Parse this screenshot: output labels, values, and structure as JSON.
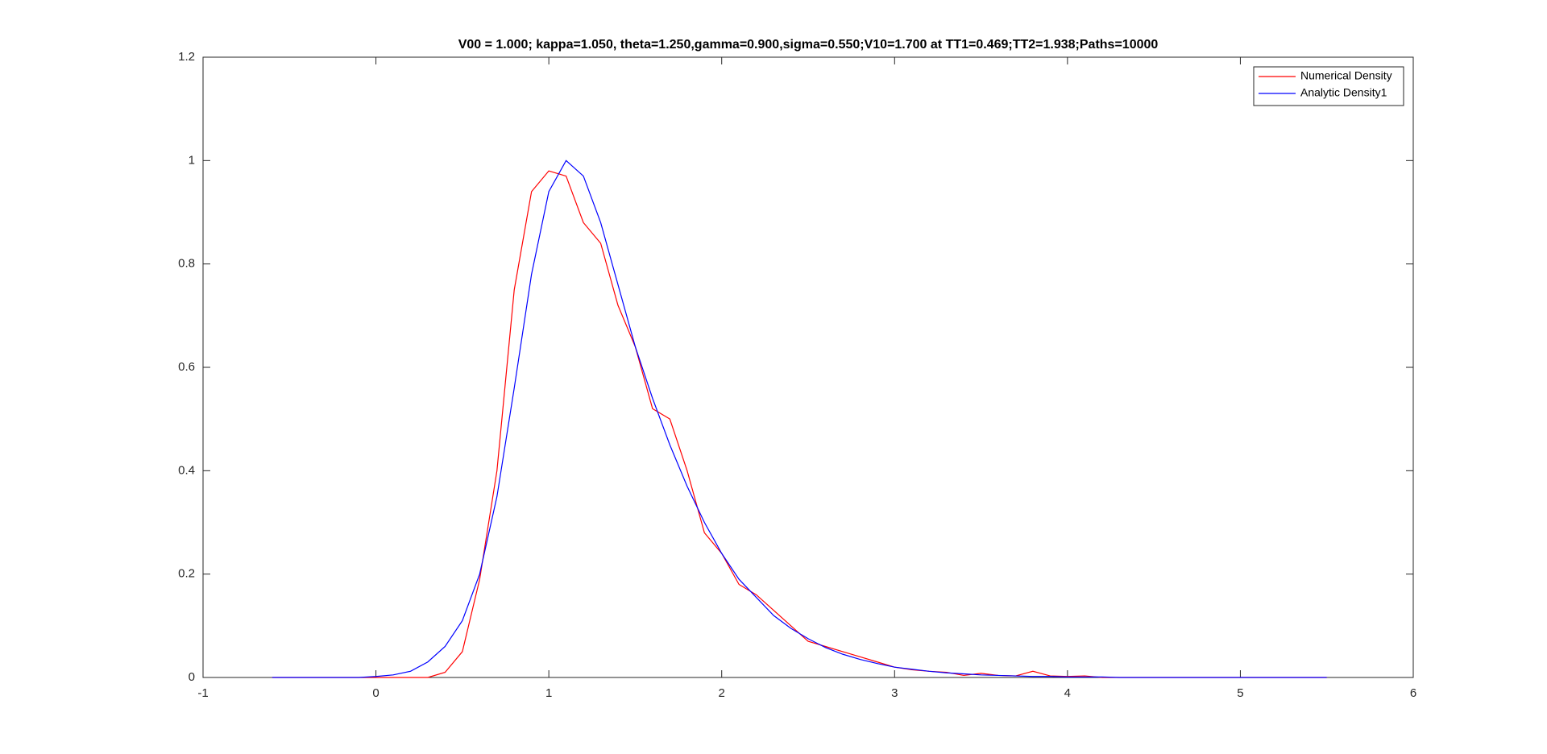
{
  "chart_data": {
    "type": "line",
    "title": "V00 = 1.000; kappa=1.050, theta=1.250,gamma=0.900,sigma=0.550;V10=1.700 at TT1=0.469;TT2=1.938;Paths=10000",
    "x": [
      -0.6,
      -0.5,
      -0.4,
      -0.3,
      -0.2,
      -0.1,
      0,
      0.1,
      0.2,
      0.3,
      0.4,
      0.5,
      0.6,
      0.7,
      0.8,
      0.9,
      1.0,
      1.1,
      1.2,
      1.3,
      1.4,
      1.5,
      1.6,
      1.7,
      1.8,
      1.9,
      2.0,
      2.1,
      2.2,
      2.3,
      2.4,
      2.5,
      2.6,
      2.7,
      2.8,
      2.9,
      3.0,
      3.1,
      3.2,
      3.3,
      3.4,
      3.5,
      3.6,
      3.7,
      3.8,
      3.9,
      4.0,
      4.1,
      4.2,
      4.3,
      4.4,
      4.5,
      4.6,
      4.7,
      4.8,
      4.9,
      5.0,
      5.1,
      5.2,
      5.3,
      5.4,
      5.5
    ],
    "series": [
      {
        "name": "Numerical Density",
        "color": "#ff0000",
        "values": [
          0,
          0,
          0,
          0,
          0,
          0,
          0,
          0,
          0,
          0,
          0.01,
          0.05,
          0.19,
          0.4,
          0.75,
          0.94,
          0.98,
          0.97,
          0.88,
          0.84,
          0.72,
          0.64,
          0.52,
          0.5,
          0.4,
          0.28,
          0.24,
          0.18,
          0.16,
          0.13,
          0.1,
          0.07,
          0.06,
          0.05,
          0.04,
          0.03,
          0.02,
          0.015,
          0.012,
          0.01,
          0.004,
          0.008,
          0.004,
          0.003,
          0.012,
          0.003,
          0.002,
          0.003,
          0,
          0,
          0,
          0,
          0,
          0,
          0,
          0,
          0,
          0,
          0,
          0,
          0,
          0
        ]
      },
      {
        "name": "Analytic Density1",
        "color": "#0000ff",
        "values": [
          0,
          0,
          0,
          0,
          0,
          0,
          0.002,
          0.005,
          0.012,
          0.03,
          0.06,
          0.11,
          0.2,
          0.35,
          0.56,
          0.78,
          0.94,
          1.0,
          0.97,
          0.88,
          0.76,
          0.64,
          0.54,
          0.45,
          0.37,
          0.3,
          0.24,
          0.19,
          0.155,
          0.12,
          0.095,
          0.075,
          0.058,
          0.045,
          0.035,
          0.027,
          0.02,
          0.016,
          0.012,
          0.009,
          0.007,
          0.005,
          0.004,
          0.003,
          0.002,
          0.002,
          0.001,
          0.001,
          0.001,
          0,
          0,
          0,
          0,
          0,
          0,
          0,
          0,
          0,
          0,
          0,
          0,
          0
        ]
      }
    ],
    "xlim": [
      -1,
      6
    ],
    "xticks": [
      -1,
      0,
      1,
      2,
      3,
      4,
      5,
      6
    ],
    "ylim": [
      0,
      1.2
    ],
    "yticks": [
      0,
      0.2,
      0.4,
      0.6,
      0.8,
      1,
      1.2
    ],
    "legend": "top-right"
  }
}
